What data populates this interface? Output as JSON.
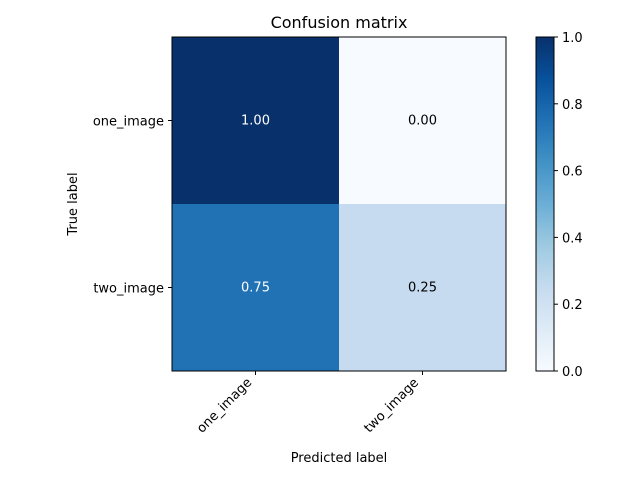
{
  "chart_data": {
    "type": "heatmap",
    "title": "Confusion matrix",
    "xlabel": "Predicted label",
    "ylabel": "True label",
    "x_categories": [
      "one_image",
      "two_image"
    ],
    "y_categories": [
      "one_image",
      "two_image"
    ],
    "values": [
      [
        1.0,
        0.0
      ],
      [
        0.75,
        0.25
      ]
    ],
    "cell_labels": [
      [
        "1.00",
        "0.00"
      ],
      [
        "0.75",
        "0.25"
      ]
    ],
    "colormap": "Blues",
    "colormap_stops": [
      "#f7fbff",
      "#deebf7",
      "#c6dbef",
      "#9ecae1",
      "#6baed6",
      "#4292c6",
      "#2171b5",
      "#08519c",
      "#08306b"
    ],
    "vmin": 0.0,
    "vmax": 1.0,
    "colorbar_ticks": [
      "0.0",
      "0.2",
      "0.4",
      "0.6",
      "0.8",
      "1.0"
    ],
    "x_tick_rotation_deg": 45,
    "grid": false
  }
}
